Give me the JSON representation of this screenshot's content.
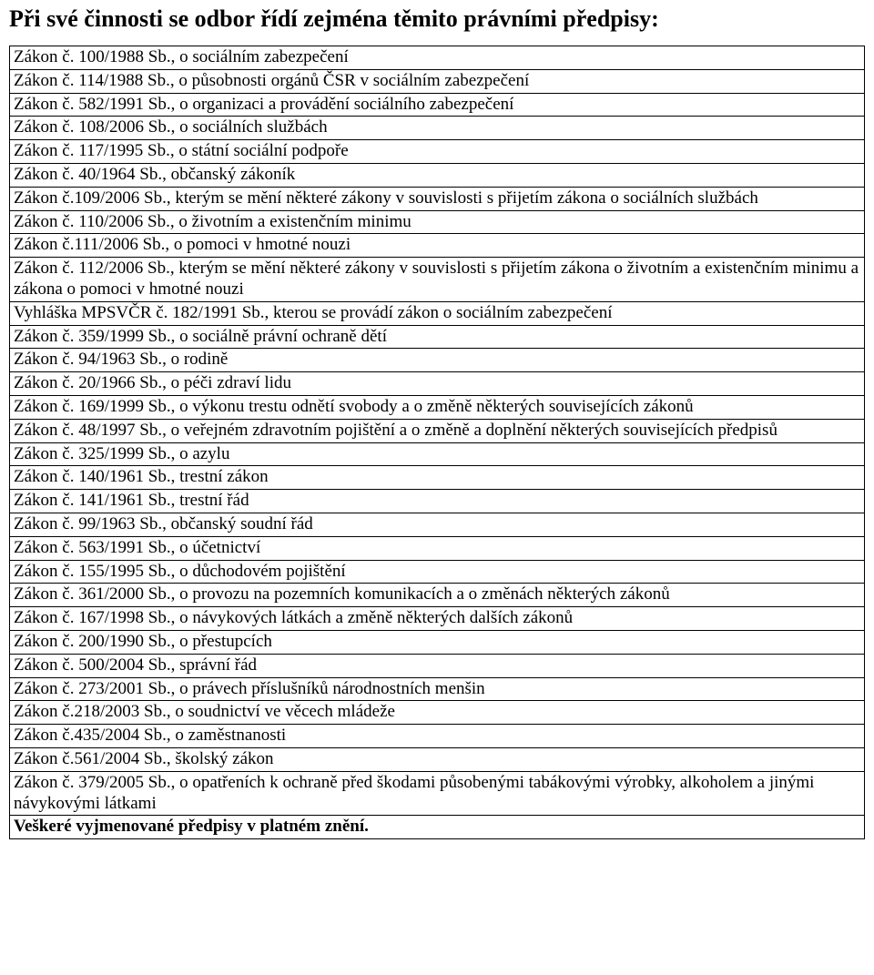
{
  "title": "Při své činnosti se odbor řídí zejména těmito právními předpisy:",
  "rows": [
    "Zákon č. 100/1988 Sb., o sociálním zabezpečení",
    "Zákon č. 114/1988 Sb., o působnosti orgánů ČSR v sociálním zabezpečení",
    "Zákon č. 582/1991 Sb., o organizaci a provádění sociálního zabezpečení",
    "Zákon č. 108/2006 Sb., o sociálních službách",
    "Zákon č. 117/1995 Sb., o státní sociální podpoře",
    "Zákon č. 40/1964 Sb., občanský zákoník",
    "Zákon č.109/2006 Sb., kterým se mění některé zákony v souvislosti s přijetím zákona o sociálních službách",
    "Zákon č. 110/2006 Sb., o životním a existenčním minimu",
    "Zákon č.111/2006 Sb., o pomoci v hmotné nouzi",
    "Zákon č. 112/2006 Sb., kterým se mění některé zákony v souvislosti s přijetím zákona o životním a existenčním minimu a zákona o pomoci v hmotné nouzi",
    "Vyhláška MPSVČR č. 182/1991 Sb., kterou se provádí zákon o sociálním zabezpečení",
    "Zákon č. 359/1999 Sb., o sociálně právní ochraně dětí",
    "Zákon č. 94/1963 Sb., o rodině",
    "Zákon č. 20/1966 Sb., o péči zdraví lidu",
    "Zákon č. 169/1999 Sb., o výkonu trestu odnětí svobody a o změně některých souvisejících zákonů",
    "Zákon č. 48/1997 Sb., o veřejném zdravotním pojištění a o změně a doplnění některých souvisejících předpisů",
    "Zákon č. 325/1999 Sb., o azylu",
    "Zákon č. 140/1961 Sb., trestní zákon",
    "Zákon č. 141/1961 Sb., trestní řád",
    "Zákon č. 99/1963 Sb., občanský soudní řád",
    "Zákon č. 563/1991 Sb., o účetnictví",
    "Zákon č. 155/1995 Sb., o důchodovém pojištění",
    "Zákon č. 361/2000 Sb., o provozu na pozemních komunikacích a o změnách některých zákonů",
    "Zákon č. 167/1998 Sb., o návykových látkách a změně některých dalších zákonů",
    "Zákon č. 200/1990 Sb., o přestupcích",
    "Zákon č. 500/2004 Sb., správní řád",
    "Zákon č. 273/2001 Sb., o právech příslušníků národnostních menšin",
    "Zákon č.218/2003 Sb., o soudnictví ve věcech mládeže",
    "Zákon č.435/2004 Sb., o zaměstnanosti",
    "Zákon č.561/2004 Sb., školský zákon",
    "Zákon č. 379/2005 Sb., o opatřeních k ochraně před škodami působenými tabákovými výrobky, alkoholem a jinými návykovými látkami",
    "<b>Veškeré vyjmenované předpisy v platném znění.</b>"
  ]
}
